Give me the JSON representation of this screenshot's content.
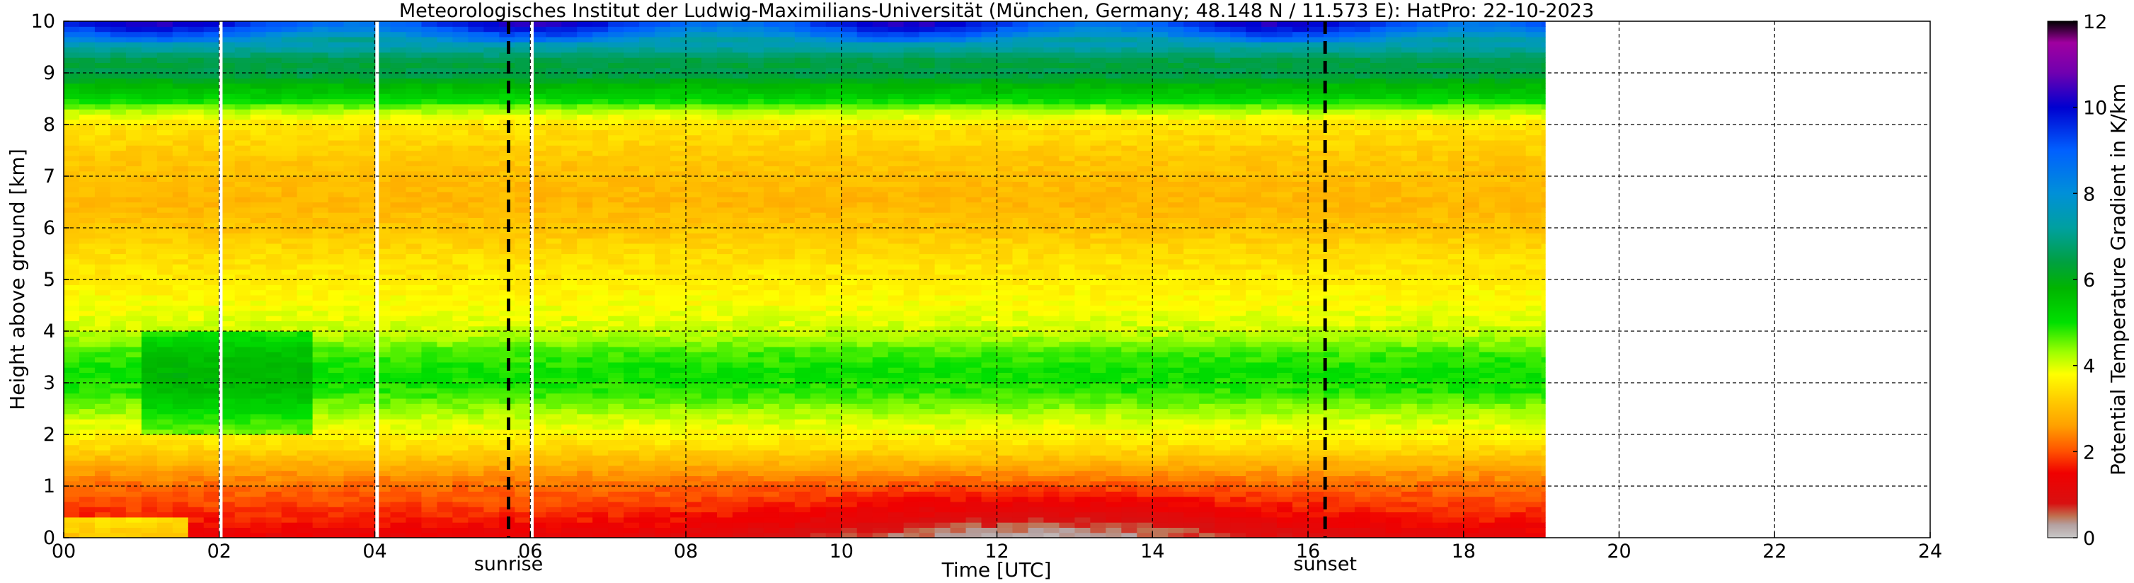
{
  "chart_data": {
    "type": "heatmap",
    "title": "Meteorologisches Institut der Ludwig-Maximilians-Universität (München, Germany; 48.148 N / 11.573 E):    HatPro: 22-10-2023",
    "xlabel": "Time [UTC]",
    "ylabel": "Height above ground [km]",
    "colorbar_label": "Potential Temperature Gradient in K/km",
    "xlim": [
      0,
      24
    ],
    "ylim": [
      0,
      10
    ],
    "clim": [
      0,
      12
    ],
    "grid": true,
    "x_ticks": [
      0,
      2,
      4,
      6,
      8,
      10,
      12,
      14,
      16,
      18,
      20,
      22,
      24
    ],
    "x_tick_labels": [
      "00",
      "02",
      "04",
      "06",
      "08",
      "10",
      "12",
      "14",
      "16",
      "18",
      "20",
      "22",
      "24"
    ],
    "y_ticks": [
      0,
      1,
      2,
      3,
      4,
      5,
      6,
      7,
      8,
      9,
      10
    ],
    "y_tick_labels": [
      "0",
      "1",
      "2",
      "3",
      "4",
      "5",
      "6",
      "7",
      "8",
      "9",
      "10"
    ],
    "colorbar_ticks": [
      0,
      2,
      4,
      6,
      8,
      10,
      12
    ],
    "colorbar_tick_labels": [
      "0",
      "2",
      "4",
      "6",
      "8",
      "10",
      "12"
    ],
    "data_end_time": 19.05,
    "data_gaps": [
      2.02,
      4.03,
      6.02
    ],
    "sunrise_time": 5.72,
    "sunset_time": 16.22,
    "sunrise_label": "sunrise",
    "sunset_label": "sunset",
    "profile_heights_km": [
      0,
      0.15,
      0.3,
      0.5,
      0.75,
      1.0,
      1.3,
      1.7,
      2.0,
      2.4,
      2.8,
      3.2,
      3.6,
      4.0,
      4.5,
      5.0,
      5.5,
      6.0,
      6.5,
      7.0,
      7.5,
      8.0,
      8.3,
      8.5,
      8.8,
      9.0,
      9.2,
      9.4,
      9.6,
      9.8,
      10.0
    ],
    "profile_values": [
      1.3,
      1.4,
      1.6,
      1.8,
      2.0,
      2.2,
      2.6,
      3.3,
      3.7,
      4.2,
      4.8,
      5.0,
      4.7,
      4.1,
      3.8,
      3.6,
      3.4,
      3.1,
      2.9,
      3.0,
      3.2,
      3.5,
      4.3,
      5.2,
      5.8,
      6.6,
      6.3,
      7.0,
      7.6,
      8.8,
      9.6
    ],
    "colormap": [
      {
        "v": 0.0,
        "c": "#c8c8c8"
      },
      {
        "v": 0.3,
        "c": "#b4a0a0"
      },
      {
        "v": 0.5,
        "c": "#c07050"
      },
      {
        "v": 0.8,
        "c": "#d81010"
      },
      {
        "v": 1.5,
        "c": "#f00000"
      },
      {
        "v": 2.0,
        "c": "#ff5000"
      },
      {
        "v": 2.6,
        "c": "#ffa000"
      },
      {
        "v": 3.2,
        "c": "#ffcc00"
      },
      {
        "v": 3.8,
        "c": "#ffff00"
      },
      {
        "v": 4.3,
        "c": "#a0ff00"
      },
      {
        "v": 5.0,
        "c": "#00e000"
      },
      {
        "v": 5.8,
        "c": "#00b400"
      },
      {
        "v": 6.4,
        "c": "#00a040"
      },
      {
        "v": 7.2,
        "c": "#00a0a0"
      },
      {
        "v": 8.0,
        "c": "#0090d8"
      },
      {
        "v": 9.0,
        "c": "#0060ff"
      },
      {
        "v": 10.0,
        "c": "#0000d0"
      },
      {
        "v": 10.8,
        "c": "#7000b0"
      },
      {
        "v": 11.5,
        "c": "#a000a0"
      },
      {
        "v": 12.0,
        "c": "#000000"
      }
    ]
  }
}
